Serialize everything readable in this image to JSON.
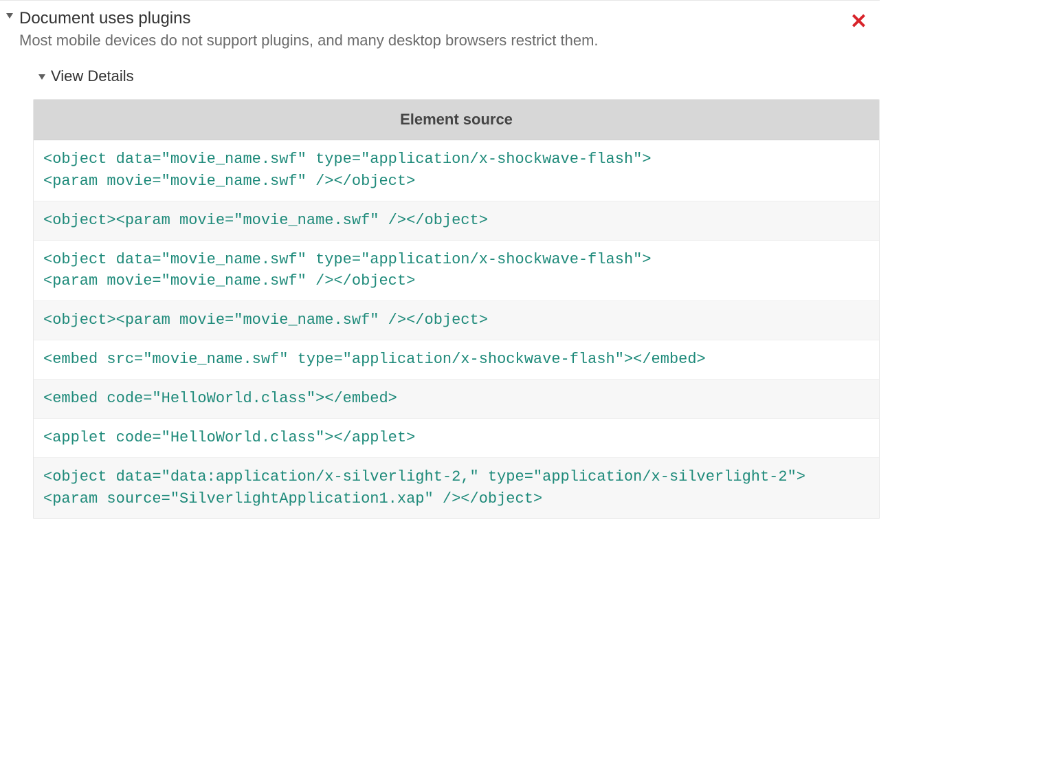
{
  "colors": {
    "text": "#333333",
    "text_muted": "#6b6b6b",
    "fail_icon": "#d8232a",
    "code_text": "#1e8a7a",
    "table_header_bg": "#d7d7d7",
    "row_alt_bg": "#f7f7f7",
    "border": "#e6e6e6"
  },
  "audit": {
    "title": "Document uses plugins",
    "description": "Most mobile devices do not support plugins, and many desktop browsers restrict them.",
    "status": "fail",
    "status_glyph": "✕",
    "expanded": true
  },
  "details": {
    "label": "View Details",
    "expanded": true,
    "table": {
      "header": "Element source",
      "rows": [
        "<object data=\"movie_name.swf\" type=\"application/x-shockwave-flash\"><param movie=\"movie_name.swf\" /></object>",
        "<object><param movie=\"movie_name.swf\" /></object>",
        "<object data=\"movie_name.swf\" type=\"application/x-shockwave-flash\"><param movie=\"movie_name.swf\" /></object>",
        "<object><param movie=\"movie_name.swf\" /></object>",
        "<embed src=\"movie_name.swf\" type=\"application/x-shockwave-flash\"></embed>",
        "<embed code=\"HelloWorld.class\"></embed>",
        "<applet code=\"HelloWorld.class\"></applet>",
        "<object data=\"data:application/x-silverlight-2,\" type=\"application/x-silverlight-2\"><param source=\"SilverlightApplication1.xap\" /></object>"
      ]
    }
  }
}
